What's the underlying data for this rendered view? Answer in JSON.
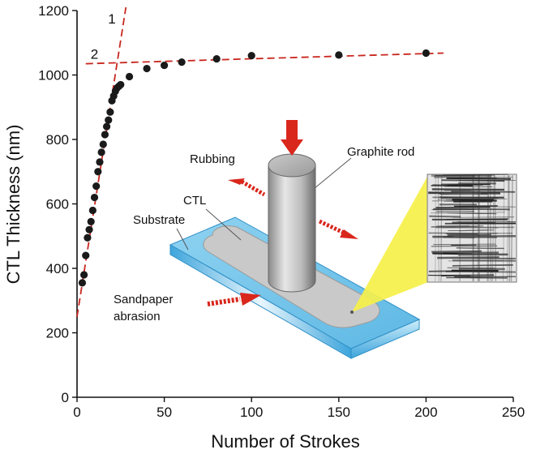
{
  "chart_data": {
    "type": "scatter",
    "xlabel": "Number of Strokes",
    "ylabel": "CTL Thickness (nm)",
    "xlim": [
      0,
      250
    ],
    "ylim": [
      0,
      1200
    ],
    "xticks": [
      "0",
      "50",
      "100",
      "150",
      "200",
      "250"
    ],
    "yticks": [
      "0",
      "200",
      "400",
      "600",
      "800",
      "1000",
      "1200"
    ],
    "grid": false,
    "series": [
      {
        "x": [
          3,
          4,
          5,
          6,
          7,
          8,
          9,
          10,
          11,
          12,
          13,
          14,
          15,
          16,
          17,
          18,
          19,
          20,
          21,
          22,
          23,
          24,
          25,
          30,
          40,
          50,
          60,
          80,
          100,
          150,
          200
        ],
        "y": [
          355,
          380,
          440,
          495,
          520,
          545,
          580,
          620,
          655,
          700,
          730,
          760,
          785,
          815,
          840,
          860,
          885,
          920,
          935,
          950,
          960,
          965,
          970,
          995,
          1020,
          1030,
          1040,
          1050,
          1060,
          1062,
          1068
        ]
      }
    ],
    "fit_lines": [
      {
        "label": "1",
        "x": [
          0,
          28
        ],
        "y": [
          250,
          1210
        ],
        "color": "#c8261e"
      },
      {
        "label": "2",
        "x": [
          5,
          210
        ],
        "y": [
          1035,
          1068
        ],
        "color": "#c8261e"
      }
    ],
    "annotations": {
      "rubbing": "Rubbing",
      "graphite_rod": "Graphite rod",
      "ctl": "CTL",
      "substrate": "Substrate",
      "sandpaper_line1": "Sandpaper",
      "sandpaper_line2": "abrasion"
    },
    "colors": {
      "marker": "#1a1a1a",
      "fit_line": "#c8261e",
      "arrow": "#d9271c",
      "substrate": "#6ec3ea",
      "ctl": "#c9c9c9",
      "zoom_beam": "#f6f04a"
    }
  }
}
